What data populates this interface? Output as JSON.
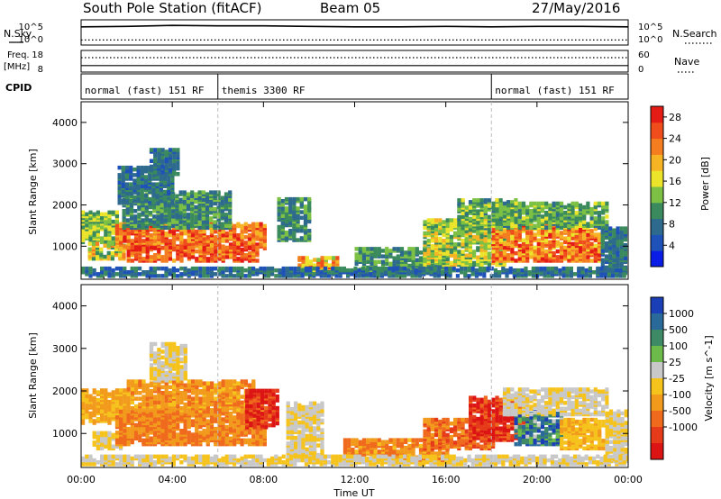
{
  "header": {
    "station": "South Pole Station (fitACF)",
    "beam": "Beam 05",
    "date": "27/May/2016"
  },
  "strip_labels": {
    "nsky": "N.Sky",
    "nsearch": "N.Search",
    "freq_line1": "Freq.",
    "freq_line2": "[MHz]",
    "nave": "Nave",
    "cpid": "CPID"
  },
  "strip_ticks": {
    "noise_left_top": "10^5",
    "noise_left_bot": "10^0",
    "noise_right_top": "10^5",
    "noise_right_bot": "10^0",
    "freq_left_top": "18",
    "freq_left_bot": "8",
    "nave_right_top": "60",
    "nave_right_bot": "0"
  },
  "cpid_segments": [
    {
      "label": "normal (fast) 151 RF",
      "start_hour": 0,
      "end_hour": 6
    },
    {
      "label": "themis 3300 RF",
      "start_hour": 6,
      "end_hour": 18
    },
    {
      "label": "normal (fast) 151 RF",
      "start_hour": 18,
      "end_hour": 24
    }
  ],
  "axes": {
    "xlabel": "Time UT",
    "ylabel": "Slant Range [km]",
    "x_ticks": [
      "00:00",
      "04:00",
      "08:00",
      "12:00",
      "16:00",
      "20:00",
      "00:00"
    ],
    "y_ticks": [
      "1000",
      "2000",
      "3000",
      "4000"
    ]
  },
  "colorbars": {
    "power": {
      "label": "Power [dB]",
      "ticks": [
        "4",
        "8",
        "12",
        "16",
        "20",
        "24",
        "28"
      ],
      "colors": [
        "#0a1de6",
        "#1f52b8",
        "#2e6a8e",
        "#3a8a5e",
        "#7cc044",
        "#ece42a",
        "#f6b324",
        "#f47d1f",
        "#ef4e1c",
        "#e51b16"
      ]
    },
    "velocity": {
      "label": "Velocity [m s^-1]",
      "ticks": [
        "1000",
        "500",
        "100",
        "25",
        "-25",
        "-100",
        "-500",
        "-1000"
      ],
      "colors": [
        "#1a3fb6",
        "#2a6a9a",
        "#3e8a66",
        "#6cba4a",
        "#c8c8c8",
        "#f6c31c",
        "#f29a1c",
        "#ef6a1c",
        "#e53b1a",
        "#dc1414"
      ]
    }
  },
  "chart_data": [
    {
      "type": "line",
      "title": "South Pole Station (fitACF) Beam 05",
      "x_hours": [
        0,
        2,
        4,
        6,
        8,
        10,
        12,
        14,
        16,
        18,
        20,
        22,
        24
      ],
      "series": [
        {
          "name": "N.Sky",
          "values_log10": [
            3.6,
            3.7,
            3.9,
            3.8,
            3.8,
            3.7,
            3.6,
            3.6,
            3.7,
            3.6,
            3.7,
            3.7,
            3.6
          ]
        },
        {
          "name": "N.Search",
          "values_log10": [
            1.0,
            1.0,
            1.0,
            1.0,
            1.0,
            1.0,
            1.0,
            1.0,
            1.0,
            1.0,
            1.0,
            1.0,
            1.0
          ]
        }
      ],
      "ylim_log10": [
        0,
        5
      ]
    },
    {
      "type": "line",
      "x_hours": [
        0,
        2,
        4,
        6,
        8,
        10,
        12,
        14,
        16,
        18,
        20,
        22,
        24
      ],
      "series": [
        {
          "name": "Freq.",
          "values": [
            11.0,
            11.0,
            11.0,
            11.0,
            11.0,
            11.0,
            11.0,
            11.0,
            11.0,
            11.0,
            11.0,
            11.0,
            11.0
          ]
        },
        {
          "name": "Nave",
          "values": [
            40,
            40,
            40,
            40,
            40,
            40,
            40,
            40,
            40,
            40,
            40,
            40,
            40
          ]
        }
      ],
      "ylim_freq": [
        8,
        18
      ],
      "ylim_nave": [
        0,
        60
      ]
    },
    {
      "type": "heatmap",
      "name": "Power",
      "xlabel": "Time UT",
      "ylabel": "Slant Range [km]",
      "xlim_hours": [
        0,
        24
      ],
      "ylim_km": [
        200,
        4500
      ],
      "clim": [
        0,
        30
      ],
      "bands": [
        {
          "t0": 0.0,
          "t1": 1.6,
          "r0": 1050,
          "r1": 1800,
          "p0": 9,
          "p1": 18
        },
        {
          "t0": 0.3,
          "t1": 1.8,
          "r0": 650,
          "r1": 1050,
          "p0": 10,
          "p1": 22
        },
        {
          "t0": 1.5,
          "t1": 8.0,
          "r0": 900,
          "r1": 1500,
          "p0": 18,
          "p1": 29
        },
        {
          "t0": 2.0,
          "t1": 7.8,
          "r0": 600,
          "r1": 950,
          "p0": 20,
          "p1": 29
        },
        {
          "t0": 1.8,
          "t1": 6.5,
          "r0": 1400,
          "r1": 2300,
          "p0": 6,
          "p1": 14
        },
        {
          "t0": 1.6,
          "t1": 4.0,
          "r0": 2000,
          "r1": 2900,
          "p0": 5,
          "p1": 12
        },
        {
          "t0": 3.0,
          "t1": 4.2,
          "r0": 2700,
          "r1": 3300,
          "p0": 5,
          "p1": 11
        },
        {
          "t0": 8.6,
          "t1": 10.0,
          "r0": 1100,
          "r1": 2100,
          "p0": 6,
          "p1": 14
        },
        {
          "t0": 9.5,
          "t1": 11.2,
          "r0": 350,
          "r1": 700,
          "p0": 14,
          "p1": 26
        },
        {
          "t0": 12.0,
          "t1": 16.0,
          "r0": 300,
          "r1": 900,
          "p0": 6,
          "p1": 15
        },
        {
          "t0": 15.0,
          "t1": 18.5,
          "r0": 500,
          "r1": 1600,
          "p0": 10,
          "p1": 20
        },
        {
          "t0": 16.5,
          "t1": 19.0,
          "r0": 1300,
          "r1": 2100,
          "p0": 8,
          "p1": 16
        },
        {
          "t0": 18.0,
          "t1": 22.8,
          "r0": 600,
          "r1": 1500,
          "p0": 17,
          "p1": 29
        },
        {
          "t0": 18.0,
          "t1": 23.0,
          "r0": 1400,
          "r1": 2000,
          "p0": 8,
          "p1": 16
        },
        {
          "t0": 22.8,
          "t1": 24.0,
          "r0": 300,
          "r1": 1400,
          "p0": 5,
          "p1": 12
        },
        {
          "t0": 0.0,
          "t1": 24.0,
          "r0": 230,
          "r1": 420,
          "p0": 3,
          "p1": 12
        }
      ]
    },
    {
      "type": "heatmap",
      "name": "Velocity",
      "xlabel": "Time UT",
      "ylabel": "Slant Range [km]",
      "xlim_hours": [
        0,
        24
      ],
      "ylim_km": [
        200,
        4500
      ],
      "clim": [
        -1000,
        1000
      ],
      "bands": [
        {
          "t0": 0.0,
          "t1": 2.0,
          "r0": 1200,
          "r1": 2000,
          "v0": -400,
          "v1": -100
        },
        {
          "t0": 0.5,
          "t1": 1.8,
          "r0": 600,
          "r1": 1000,
          "v0": -60,
          "v1": 60
        },
        {
          "t0": 1.5,
          "t1": 8.0,
          "r0": 700,
          "r1": 1500,
          "v0": -600,
          "v1": -200
        },
        {
          "t0": 2.0,
          "t1": 7.5,
          "r0": 1500,
          "r1": 2200,
          "v0": -500,
          "v1": -150
        },
        {
          "t0": 3.0,
          "t1": 4.5,
          "r0": 2200,
          "r1": 3100,
          "v0": -80,
          "v1": 80
        },
        {
          "t0": 7.2,
          "t1": 8.6,
          "r0": 1100,
          "r1": 2000,
          "v0": -1100,
          "v1": -500
        },
        {
          "t0": 9.0,
          "t1": 10.5,
          "r0": 400,
          "r1": 1700,
          "v0": -120,
          "v1": 150
        },
        {
          "t0": 11.5,
          "t1": 16.0,
          "r0": 300,
          "r1": 800,
          "v0": -600,
          "v1": -150
        },
        {
          "t0": 15.0,
          "t1": 18.0,
          "r0": 600,
          "r1": 1300,
          "v0": -700,
          "v1": -300
        },
        {
          "t0": 17.0,
          "t1": 19.5,
          "r0": 800,
          "r1": 1800,
          "v0": -1100,
          "v1": -400
        },
        {
          "t0": 19.0,
          "t1": 21.0,
          "r0": 700,
          "r1": 1500,
          "v0": 150,
          "v1": 1000
        },
        {
          "t0": 18.5,
          "t1": 23.0,
          "r0": 1400,
          "r1": 2000,
          "v0": -80,
          "v1": 150
        },
        {
          "t0": 21.0,
          "t1": 23.0,
          "r0": 600,
          "r1": 1300,
          "v0": -300,
          "v1": -60
        },
        {
          "t0": 23.0,
          "t1": 24.0,
          "r0": 300,
          "r1": 1500,
          "v0": -100,
          "v1": 120
        },
        {
          "t0": 0.0,
          "t1": 24.0,
          "r0": 230,
          "r1": 420,
          "v0": -40,
          "v1": 40
        }
      ]
    }
  ]
}
